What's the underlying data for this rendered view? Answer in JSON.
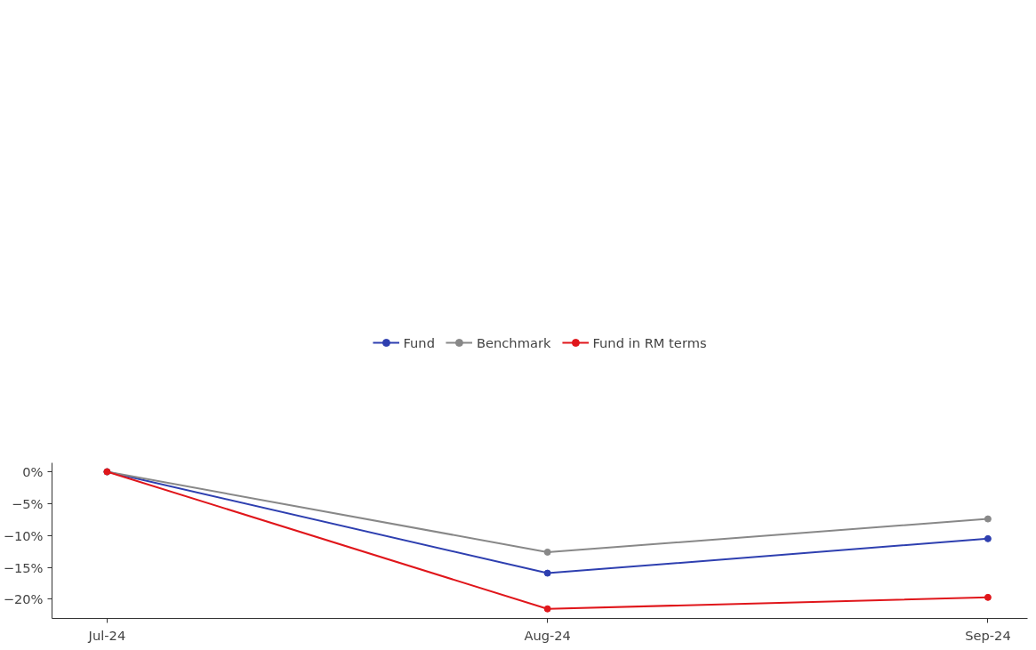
{
  "chart_data": {
    "type": "line",
    "categories": [
      "Jul-24",
      "Aug-24",
      "Sep-24"
    ],
    "series": [
      {
        "name": "Fund",
        "color": "#2e3fb0",
        "values": [
          0,
          -15.9,
          -10.5
        ]
      },
      {
        "name": "Benchmark",
        "color": "#888888",
        "values": [
          0,
          -12.6,
          -7.4
        ]
      },
      {
        "name": "Fund in RM terms",
        "color": "#e0161b",
        "values": [
          0,
          -21.5,
          -19.7
        ]
      }
    ],
    "ylim": [
      -23,
      1.4
    ],
    "yticks": [
      {
        "value": 0,
        "label": "0%"
      },
      {
        "value": -5,
        "label": "−5%"
      },
      {
        "value": -10,
        "label": "−10%"
      },
      {
        "value": -15,
        "label": "−15%"
      },
      {
        "value": -20,
        "label": "−20%"
      }
    ],
    "grid": false,
    "legend": "top",
    "marker": "circle",
    "line_style": "solid"
  }
}
